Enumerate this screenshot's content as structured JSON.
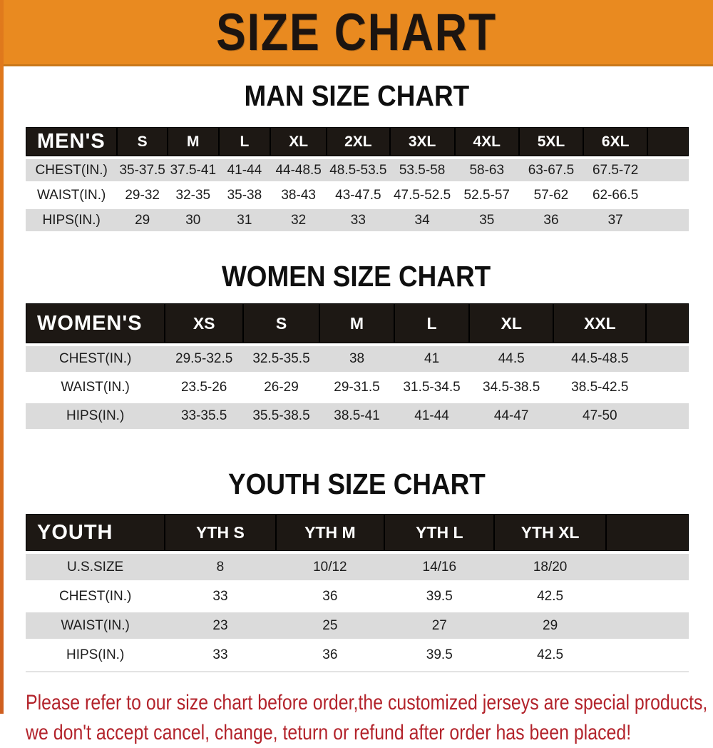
{
  "banner": {
    "title": "SIZE CHART",
    "bg_color": "#E98A20",
    "text_color": "#1C1410"
  },
  "colors": {
    "header_bar": "#1D1814",
    "row_stripe_gray": "#DBDBDB",
    "row_white": "#FFFFFF",
    "disclaimer_red": "#B3232B"
  },
  "tables": {
    "men": {
      "title": "MAN SIZE CHART",
      "label": "MEN'S",
      "columns": [
        "S",
        "M",
        "L",
        "XL",
        "2XL",
        "3XL",
        "4XL",
        "5XL",
        "6XL"
      ],
      "rows": [
        {
          "label": "CHEST(IN.)",
          "values": [
            "35-37.5",
            "37.5-41",
            "41-44",
            "44-48.5",
            "48.5-53.5",
            "53.5-58",
            "58-63",
            "63-67.5",
            "67.5-72"
          ]
        },
        {
          "label": "WAIST(IN.)",
          "values": [
            "29-32",
            "32-35",
            "35-38",
            "38-43",
            "43-47.5",
            "47.5-52.5",
            "52.5-57",
            "57-62",
            "62-66.5"
          ]
        },
        {
          "label": "HIPS(IN.)",
          "values": [
            "29",
            "30",
            "31",
            "32",
            "33",
            "34",
            "35",
            "36",
            "37"
          ]
        }
      ]
    },
    "women": {
      "title": "WOMEN SIZE CHART",
      "label": "WOMEN'S",
      "columns": [
        "XS",
        "S",
        "M",
        "L",
        "XL",
        "XXL"
      ],
      "rows": [
        {
          "label": "CHEST(IN.)",
          "values": [
            "29.5-32.5",
            "32.5-35.5",
            "38",
            "41",
            "44.5",
            "44.5-48.5"
          ]
        },
        {
          "label": "WAIST(IN.)",
          "values": [
            "23.5-26",
            "26-29",
            "29-31.5",
            "31.5-34.5",
            "34.5-38.5",
            "38.5-42.5"
          ]
        },
        {
          "label": "HIPS(IN.)",
          "values": [
            "33-35.5",
            "35.5-38.5",
            "38.5-41",
            "41-44",
            "44-47",
            "47-50"
          ]
        }
      ]
    },
    "youth": {
      "title": "YOUTH SIZE CHART",
      "label": "YOUTH",
      "columns": [
        "YTH S",
        "YTH M",
        "YTH L",
        "YTH XL"
      ],
      "rows": [
        {
          "label": "U.S.SIZE",
          "values": [
            "8",
            "10/12",
            "14/16",
            "18/20"
          ]
        },
        {
          "label": "CHEST(IN.)",
          "values": [
            "33",
            "36",
            "39.5",
            "42.5"
          ]
        },
        {
          "label": "WAIST(IN.)",
          "values": [
            "23",
            "25",
            "27",
            "29"
          ]
        },
        {
          "label": "HIPS(IN.)",
          "values": [
            "33",
            "36",
            "39.5",
            "42.5"
          ]
        }
      ]
    }
  },
  "disclaimer": {
    "line1": "Please refer to our size chart before order,the customized jerseys are special products,",
    "line2": "we don't accept cancel, change, teturn or refund after order has been placed!"
  }
}
